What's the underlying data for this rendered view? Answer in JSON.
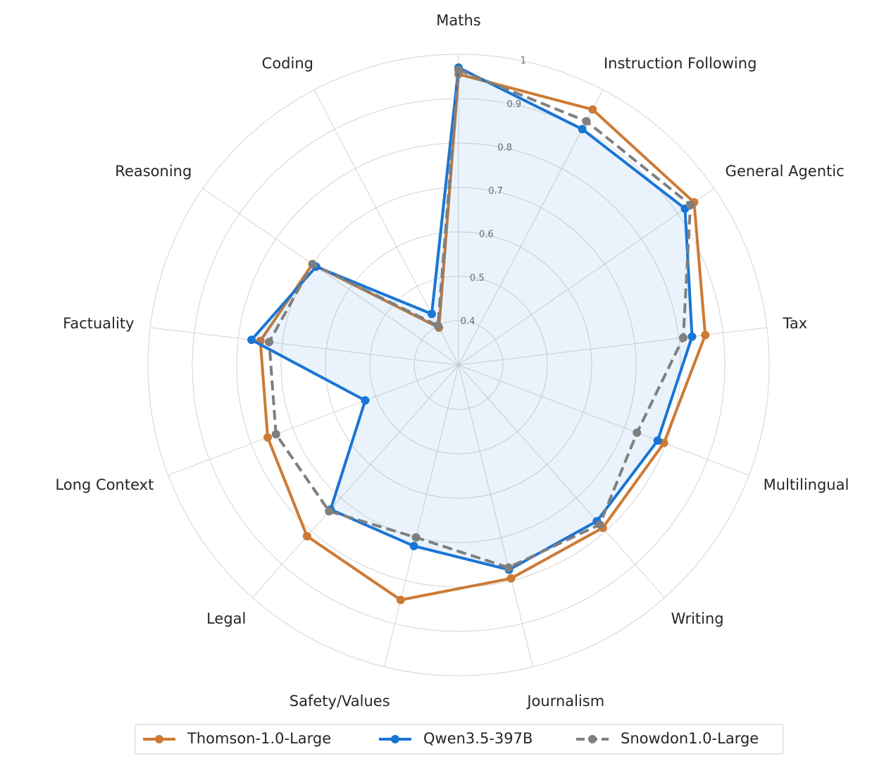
{
  "chart_data": {
    "type": "radar",
    "axes": [
      "Maths",
      "Instruction Following",
      "General Agentic",
      "Tax",
      "Multilingual",
      "Writing",
      "Journalism",
      "Safety/Values",
      "Legal",
      "Long Context",
      "Factuality",
      "Reasoning",
      "Coding"
    ],
    "rlim": [
      0.3,
      1.0
    ],
    "rticks": [
      0.4,
      0.5,
      0.6,
      0.7,
      0.8,
      0.9,
      1.0
    ],
    "rtick_labels": [
      "0.4",
      "0.5",
      "0.6",
      "0.7",
      "0.8",
      "0.9",
      "1"
    ],
    "grid": true,
    "legend_position": "bottom",
    "series": [
      {
        "name": "Thomson-1.0-Large",
        "color": "#cd7a35",
        "dash": "solid",
        "values": [
          0.955,
          0.95,
          0.945,
          0.86,
          0.795,
          0.79,
          0.795,
          0.845,
          0.815,
          0.76,
          0.75,
          0.7,
          0.395
        ]
      },
      {
        "name": "Qwen3.5-397B",
        "color": "#1a75d4",
        "dash": "solid",
        "values": [
          0.97,
          0.9,
          0.92,
          0.83,
          0.78,
          0.77,
          0.775,
          0.72,
          0.735,
          0.525,
          0.77,
          0.69,
          0.43
        ]
      },
      {
        "name": "Snowdon1.0-Large",
        "color": "#7f7f7f",
        "dash": "dashed",
        "values": [
          0.965,
          0.92,
          0.935,
          0.81,
          0.73,
          0.78,
          0.77,
          0.7,
          0.74,
          0.74,
          0.73,
          0.7,
          0.4
        ]
      }
    ]
  }
}
